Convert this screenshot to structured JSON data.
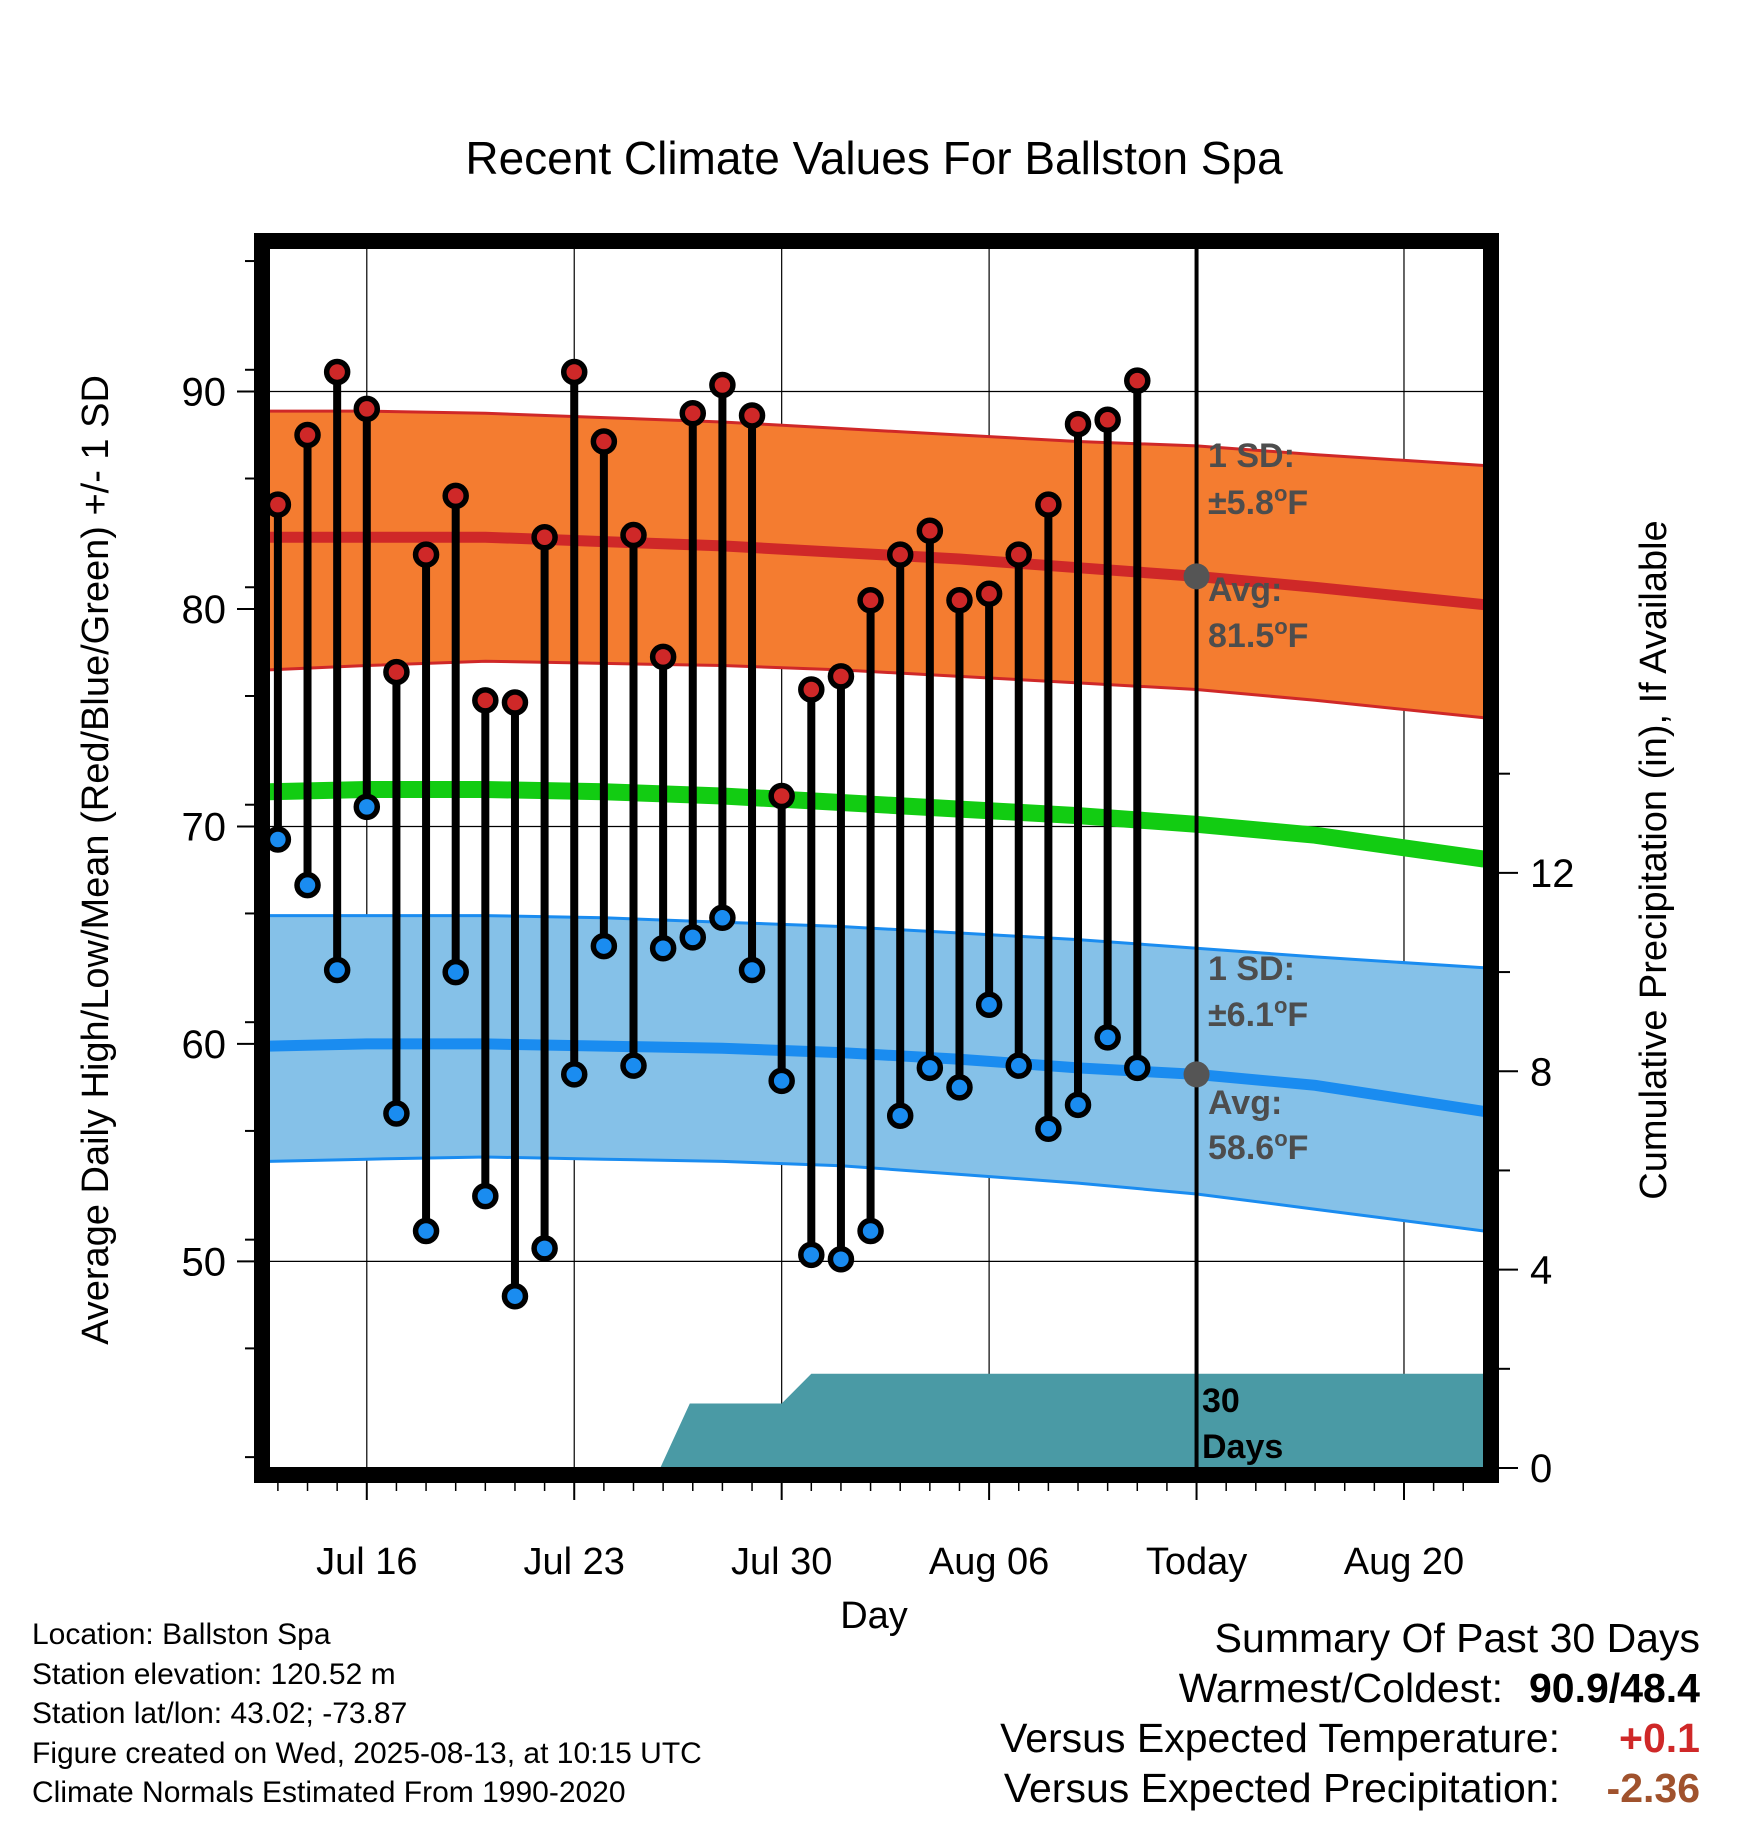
{
  "chart_data": {
    "type": "line",
    "title": "Recent Climate Values For Ballston Spa",
    "xlabel": "Day",
    "ylabel": "Average Daily High/Low/Mean (Red/Blue/Green) +/- 1 SD",
    "y2label": "Cumulative Precipitation (in), If Available",
    "x_tick_labels": [
      "Jul 16",
      "Jul 23",
      "Jul 30",
      "Aug 06",
      "Today",
      "Aug 20"
    ],
    "x_tick_days": [
      16,
      23,
      30,
      37,
      44,
      51
    ],
    "x_range_days": [
      12.7,
      53.7
    ],
    "y_ticks": [
      50,
      60,
      70,
      80,
      90
    ],
    "ylim": [
      40.5,
      96.6
    ],
    "y2_ticks": [
      0,
      4,
      8,
      12
    ],
    "y2lim": [
      0,
      24.6
    ],
    "today_day": 44,
    "days": [
      13,
      14,
      15,
      16,
      17,
      18,
      19,
      20,
      21,
      22,
      23,
      24,
      25,
      26,
      27,
      28,
      29,
      30,
      31,
      32,
      33,
      34,
      35,
      36,
      37,
      38,
      39,
      40,
      41,
      42,
      43
    ],
    "observed_high": [
      84.8,
      88.0,
      90.9,
      89.2,
      77.1,
      82.5,
      85.2,
      75.8,
      75.7,
      83.3,
      90.9,
      87.7,
      83.4,
      77.8,
      89.0,
      90.3,
      88.9,
      71.4,
      76.3,
      76.9,
      80.4,
      82.5,
      83.6,
      80.4,
      80.7,
      82.5,
      84.8,
      88.5,
      88.7,
      90.5,
      null
    ],
    "observed_low": [
      69.4,
      67.3,
      63.4,
      70.9,
      56.8,
      51.4,
      63.3,
      53.0,
      48.4,
      50.6,
      58.6,
      64.5,
      59.0,
      64.4,
      64.9,
      65.8,
      63.4,
      58.3,
      50.3,
      50.1,
      51.4,
      56.7,
      58.9,
      58.0,
      61.8,
      59.0,
      56.1,
      57.2,
      60.3,
      58.9,
      null
    ],
    "normal_high": {
      "name": "Avg",
      "days": [
        12.7,
        16,
        20,
        24,
        28,
        32,
        36,
        40,
        44,
        48,
        53.7
      ],
      "mean": [
        83.3,
        83.3,
        83.3,
        83.1,
        82.9,
        82.6,
        82.3,
        81.9,
        81.5,
        81.0,
        80.2
      ],
      "lower": [
        77.2,
        77.4,
        77.6,
        77.5,
        77.4,
        77.2,
        76.9,
        76.6,
        76.3,
        75.8,
        75.0
      ],
      "upper": [
        89.1,
        89.1,
        89.0,
        88.8,
        88.6,
        88.3,
        88.0,
        87.7,
        87.5,
        87.1,
        86.6
      ]
    },
    "normal_mean": {
      "days": [
        12.7,
        16,
        20,
        24,
        28,
        32,
        36,
        40,
        44,
        48,
        53.7
      ],
      "values": [
        71.6,
        71.7,
        71.7,
        71.6,
        71.4,
        71.1,
        70.8,
        70.5,
        70.1,
        69.6,
        68.5
      ]
    },
    "normal_low": {
      "name": "Avg",
      "days": [
        12.7,
        16,
        20,
        24,
        28,
        32,
        36,
        40,
        44,
        48,
        53.7
      ],
      "mean": [
        59.9,
        60.0,
        60.0,
        59.9,
        59.8,
        59.6,
        59.3,
        58.9,
        58.6,
        58.1,
        56.9
      ],
      "lower": [
        54.6,
        54.7,
        54.8,
        54.7,
        54.6,
        54.4,
        54.0,
        53.6,
        53.1,
        52.4,
        51.4
      ],
      "upper": [
        65.9,
        65.9,
        65.9,
        65.8,
        65.6,
        65.4,
        65.1,
        64.8,
        64.4,
        64.0,
        63.5
      ]
    },
    "precip_cumulative": {
      "days": [
        25.9,
        26.9,
        30.0,
        31.0,
        53.7
      ],
      "values": [
        0.0,
        1.3,
        1.3,
        1.9,
        1.9
      ]
    },
    "annotations": {
      "high_sd_title": "1 SD:",
      "high_sd_value": "±5.8",
      "high_avg_title": "Avg:",
      "high_avg_value": "81.5",
      "low_sd_title": "1 SD:",
      "low_sd_value": "±6.1",
      "low_avg_title": "Avg:",
      "low_avg_value": "58.6",
      "unit_degree": "o",
      "unit_f": "F",
      "days_count": "30",
      "days_word": "Days"
    },
    "colors": {
      "high_band": "#f47c30",
      "high_line": "#cf2828",
      "low_band": "#85c1e8",
      "low_line": "#1a8cf0",
      "mean_line": "#12cc12",
      "precip": "#4a9aa5",
      "high_dot": "#cf2828",
      "low_dot": "#1a8cf0",
      "annotation_text": "#4d4d4d"
    },
    "grid": true
  },
  "footer": {
    "location": "Location: Ballston Spa",
    "elevation": "Station elevation: 120.52 m",
    "latlon": "Station lat/lon: 43.02; -73.87",
    "created": "Figure created on Wed, 2025-08-13, at 10:15 UTC",
    "normals": "Climate Normals Estimated From 1990-2020"
  },
  "summary": {
    "title": "Summary Of Past 30 Days",
    "warm_cold_label": "Warmest/Coldest:",
    "warm_cold_value": "90.9/48.4",
    "temp_label": "Versus Expected Temperature:",
    "temp_value": "+0.1",
    "temp_color": "#cf2828",
    "precip_label": "Versus Expected Precipitation:",
    "precip_value": "-2.36",
    "precip_color": "#a0522d"
  }
}
